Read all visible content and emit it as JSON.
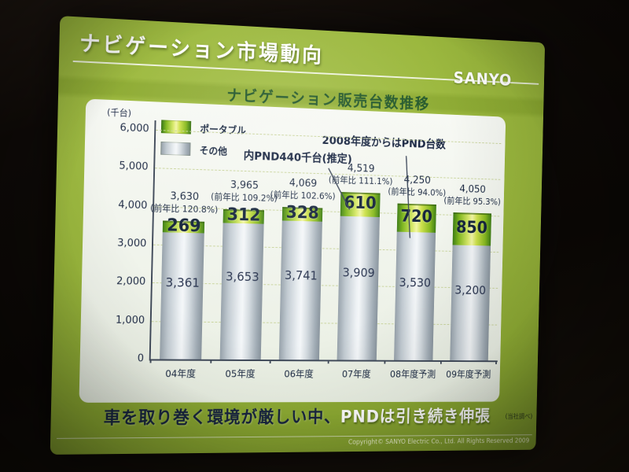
{
  "slide": {
    "title": "ナビゲーション市場動向",
    "logo_text": "SANYO",
    "banner_dark_text": "車を取り巻く環境が厳しい中、",
    "banner_white_text": "PNDは引き続き伸張",
    "source_note": "(当社調べ)",
    "copyright_text": "Copyright© SANYO Electric Co., Ltd. All Rights Reserved 2009",
    "colors": {
      "slide_green": "#99b63c",
      "title_white": "#ffffff",
      "subtitle_green": "#265a2e",
      "bar_portable_green": "#86b91f",
      "bar_other_gray": "#c2cbd2",
      "text_navy": "#1d2b44",
      "card_white": "#f3f6f0"
    }
  },
  "chart_data": {
    "type": "bar",
    "stacked": true,
    "title": "ナビゲーション販売台数推移",
    "unit_label": "(千台)",
    "categories": [
      "04年度",
      "05年度",
      "06年度",
      "07年度",
      "08年度予測",
      "09年度予測"
    ],
    "series": [
      {
        "name": "ポータブル",
        "values": [
          269,
          312,
          328,
          610,
          720,
          850
        ]
      },
      {
        "name": "その他",
        "values": [
          3361,
          3653,
          3741,
          3909,
          3530,
          3200
        ]
      }
    ],
    "totals": [
      "3,630",
      "3,965",
      "4,069",
      "4,519",
      "4,250",
      "4,050"
    ],
    "yoy_labels": [
      "(前年比 120.8%)",
      "(前年比 109.2%)",
      "(前年比 102.6%)",
      "(前年比 111.1%)",
      "(前年比 94.0%)",
      "(前年比 95.3%)"
    ],
    "annotations": [
      "2008年度からはPND台数",
      "内PND440千台(推定)"
    ],
    "ylim": [
      0,
      6000
    ],
    "ytick_step": 1000,
    "yticks": [
      "6,000",
      "5,000",
      "4,000",
      "3,000",
      "2,000",
      "1,000",
      "0"
    ],
    "gridlines": "dashed-horizontal",
    "legend_position": "top-left"
  }
}
